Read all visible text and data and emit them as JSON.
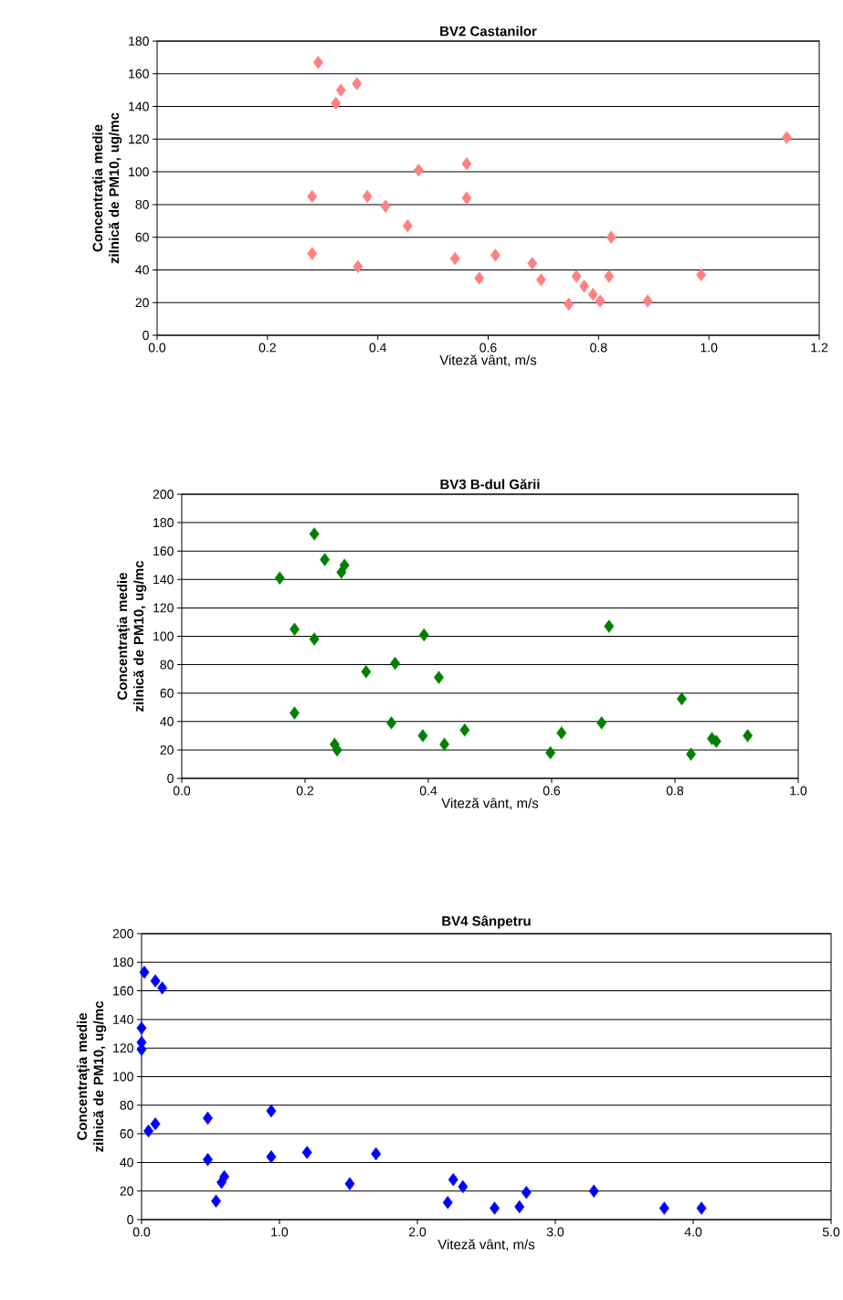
{
  "chart_data": [
    {
      "type": "scatter",
      "title": "BV2 Castanilor",
      "xlabel": "Viteză vânt, m/s",
      "ylabel": "Concentraţia medie zilnică de PM10, ug/mc",
      "color": "#ff8080",
      "marker": "diamond",
      "grid": "y",
      "x": [
        0.292,
        0.333,
        0.362,
        0.324,
        1.141,
        0.474,
        0.561,
        0.281,
        0.381,
        0.414,
        0.454,
        0.561,
        0.823,
        0.281,
        0.364,
        0.54,
        0.613,
        0.68,
        0.696,
        0.584,
        0.746,
        0.76,
        0.774,
        0.79,
        0.803,
        0.819,
        0.889,
        0.986
      ],
      "values": [
        167,
        150,
        154,
        142,
        121,
        101,
        105,
        85,
        85,
        79,
        67,
        84,
        60,
        50,
        42,
        47,
        49,
        44,
        34,
        35,
        19,
        36,
        30,
        25,
        21,
        36,
        21,
        37
      ],
      "xlim": [
        0,
        1.2
      ],
      "ylim": [
        0,
        180
      ],
      "xticks": [
        {
          "value": 0,
          "label": "0.0"
        },
        {
          "value": 0.2,
          "label": "0.2"
        },
        {
          "value": 0.4,
          "label": "0.4"
        },
        {
          "value": 0.6,
          "label": "0.6"
        },
        {
          "value": 0.8,
          "label": "0.8"
        },
        {
          "value": 1,
          "label": "1.0"
        },
        {
          "value": 1.2,
          "label": "1.2"
        }
      ],
      "yticks": [
        0,
        20,
        40,
        60,
        80,
        100,
        120,
        140,
        160,
        180
      ]
    },
    {
      "type": "scatter",
      "title": "BV3 B-dul Gării",
      "xlabel": "Viteză vânt, m/s",
      "ylabel": "Concentraţia medie zilnică de PM10, ug/mc",
      "color": "#008000",
      "marker": "diamond",
      "grid": "y",
      "x": [
        0.159,
        0.215,
        0.232,
        0.264,
        0.259,
        0.183,
        0.215,
        0.393,
        0.693,
        0.299,
        0.346,
        0.417,
        0.183,
        0.248,
        0.252,
        0.34,
        0.391,
        0.426,
        0.459,
        0.598,
        0.616,
        0.681,
        0.811,
        0.826,
        0.86,
        0.867,
        0.918
      ],
      "values": [
        141,
        172,
        154,
        150,
        145,
        105,
        98,
        101,
        107,
        75,
        81,
        71,
        46,
        24,
        20,
        39,
        30,
        24,
        34,
        18,
        32,
        39,
        56,
        17,
        28,
        26,
        30
      ],
      "xlim": [
        0,
        1
      ],
      "ylim": [
        0,
        200
      ],
      "xticks": [
        {
          "value": 0,
          "label": "0.0"
        },
        {
          "value": 0.2,
          "label": "0.2"
        },
        {
          "value": 0.4,
          "label": "0.4"
        },
        {
          "value": 0.6,
          "label": "0.6"
        },
        {
          "value": 0.8,
          "label": "0.8"
        },
        {
          "value": 1,
          "label": "1.0"
        }
      ],
      "yticks": [
        0,
        20,
        40,
        60,
        80,
        100,
        120,
        140,
        160,
        180,
        200
      ]
    },
    {
      "type": "scatter",
      "title": "BV4 Sânpetru",
      "xlabel": "Viteză vânt, m/s",
      "ylabel": "Concentraţia medie zilnică de PM10, ug/mc",
      "color": "#0000ff",
      "marker": "diamond",
      "grid": "y",
      "x": [
        0.02,
        0.1,
        0.15,
        0.0,
        0.0,
        0.0,
        0.05,
        0.1,
        0.48,
        0.94,
        0.48,
        0.94,
        1.2,
        0.6,
        0.58,
        0.54,
        1.51,
        1.7,
        2.26,
        2.33,
        2.22,
        2.56,
        2.74,
        2.79,
        3.28,
        3.79,
        4.06
      ],
      "values": [
        173,
        167,
        162,
        134,
        124,
        119,
        62,
        67,
        71,
        76,
        42,
        44,
        47,
        30,
        26,
        13,
        25,
        46,
        28,
        23,
        12,
        8,
        9,
        19,
        20,
        8,
        8
      ],
      "xlim": [
        0,
        5
      ],
      "ylim": [
        0,
        200
      ],
      "xticks": [
        {
          "value": 0,
          "label": "0.0"
        },
        {
          "value": 1,
          "label": "1.0"
        },
        {
          "value": 2,
          "label": "2.0"
        },
        {
          "value": 3,
          "label": "3.0"
        },
        {
          "value": 4,
          "label": "4.0"
        },
        {
          "value": 5,
          "label": "5.0"
        }
      ],
      "yticks": [
        0,
        20,
        40,
        60,
        80,
        100,
        120,
        140,
        160,
        180,
        200
      ]
    }
  ]
}
